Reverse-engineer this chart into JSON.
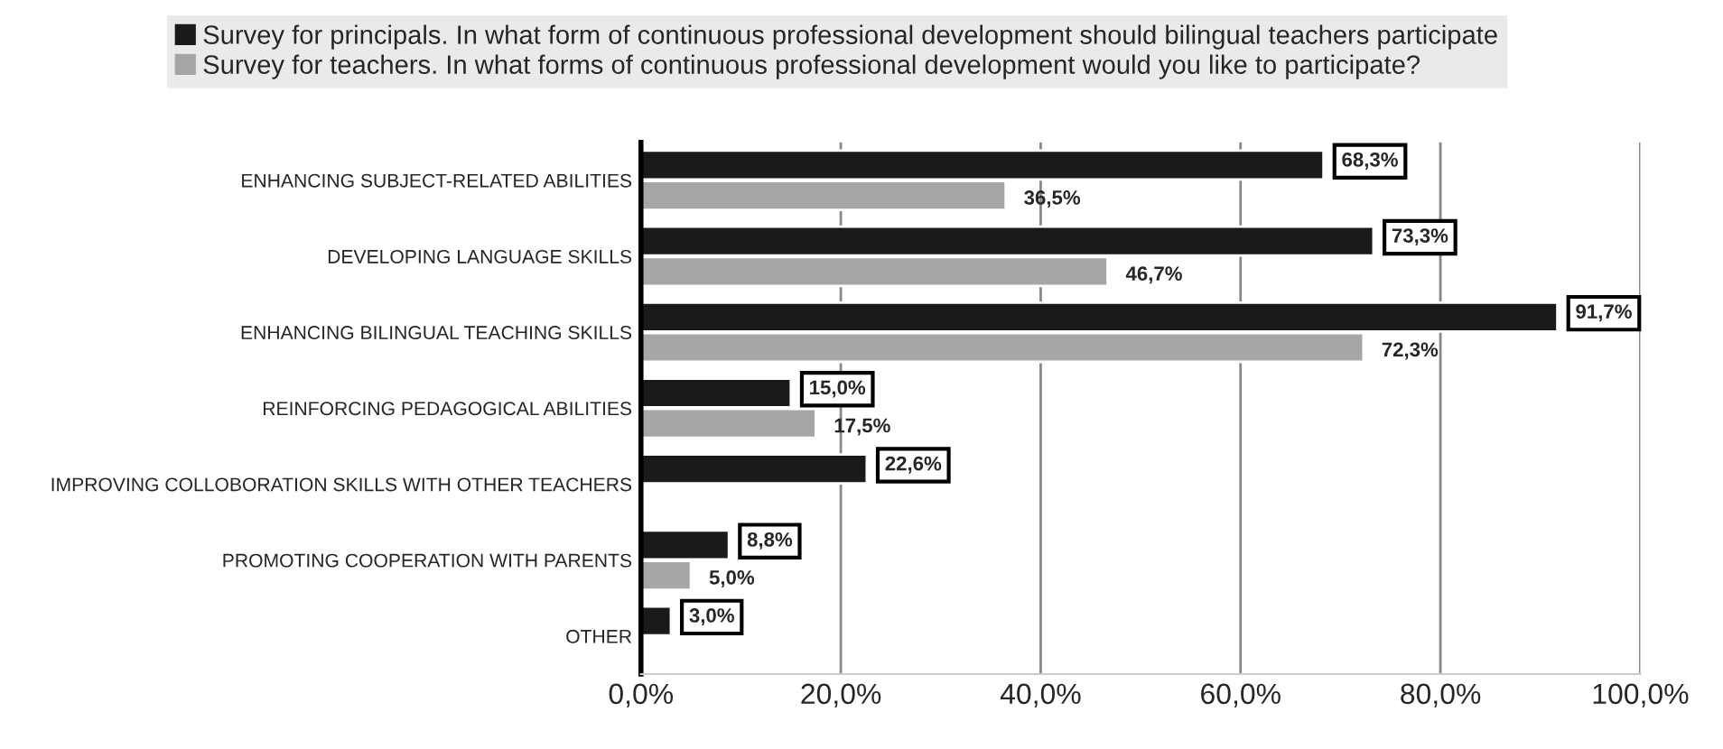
{
  "chart_data": {
    "type": "bar",
    "orientation": "horizontal",
    "legend": "top",
    "grid": "x",
    "categories": [
      "ENHANCING SUBJECT-RELATED ABILITIES",
      "DEVELOPING LANGUAGE SKILLS",
      "ENHANCING BILINGUAL TEACHING SKILLS",
      "REINFORCING PEDAGOGICAL ABILITIES",
      "IMPROVING COLLOBORATION SKILLS WITH OTHER TEACHERS",
      "PROMOTING COOPERATION WITH PARENTS",
      "OTHER"
    ],
    "series": [
      {
        "name": "Survey for principals. In what form of continuous professional development should bilingual teachers participate",
        "color": "#1a1a1a",
        "values": [
          68.3,
          73.3,
          91.7,
          15.0,
          22.6,
          8.8,
          3.0
        ],
        "value_labels": [
          "68,3%",
          "73,3%",
          "91,7%",
          "15,0%",
          "22,6%",
          "8,8%",
          "3,0%"
        ]
      },
      {
        "name": "Survey for teachers. In what forms of continuous professional development would you like to participate?",
        "color": "#a6a6a6",
        "values": [
          36.5,
          46.7,
          72.3,
          17.5,
          null,
          5.0,
          null
        ],
        "value_labels": [
          "36,5%",
          "46,7%",
          "72,3%",
          "17,5%",
          null,
          "5,0%",
          null
        ]
      }
    ],
    "xlim": [
      0,
      100
    ],
    "xticks": [
      {
        "value": 0,
        "label": "0,0%"
      },
      {
        "value": 20,
        "label": "20,0%"
      },
      {
        "value": 40,
        "label": "40,0%"
      },
      {
        "value": 60,
        "label": "60,0%"
      },
      {
        "value": 80,
        "label": "80,0%"
      },
      {
        "value": 100,
        "label": "100,0%"
      }
    ]
  }
}
